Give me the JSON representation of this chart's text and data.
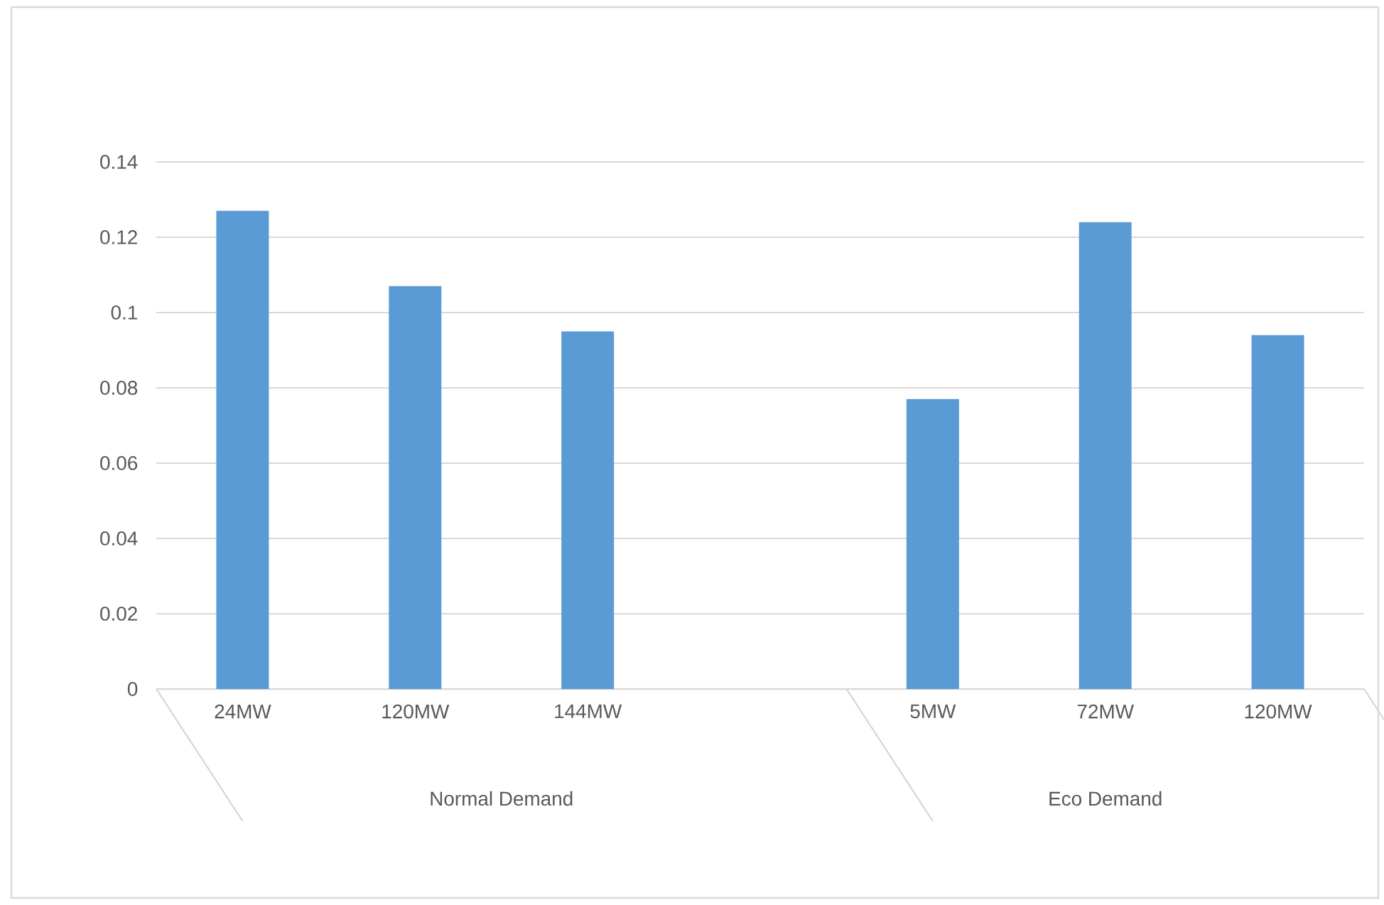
{
  "chart_data": {
    "type": "bar",
    "categories": [
      "24MW",
      "120MW",
      "144MW",
      null,
      "5MW",
      "72MW",
      "120MW"
    ],
    "values": [
      0.127,
      0.107,
      0.095,
      null,
      0.077,
      0.124,
      0.094
    ],
    "color": "#5b9bd5",
    "ylim": [
      0,
      0.14
    ],
    "yticks": [
      0,
      0.02,
      0.04,
      0.06,
      0.08,
      0.1,
      0.12,
      0.14
    ],
    "grid": "y",
    "annotations": [
      "Normal Demand",
      "Eco Demand"
    ]
  }
}
